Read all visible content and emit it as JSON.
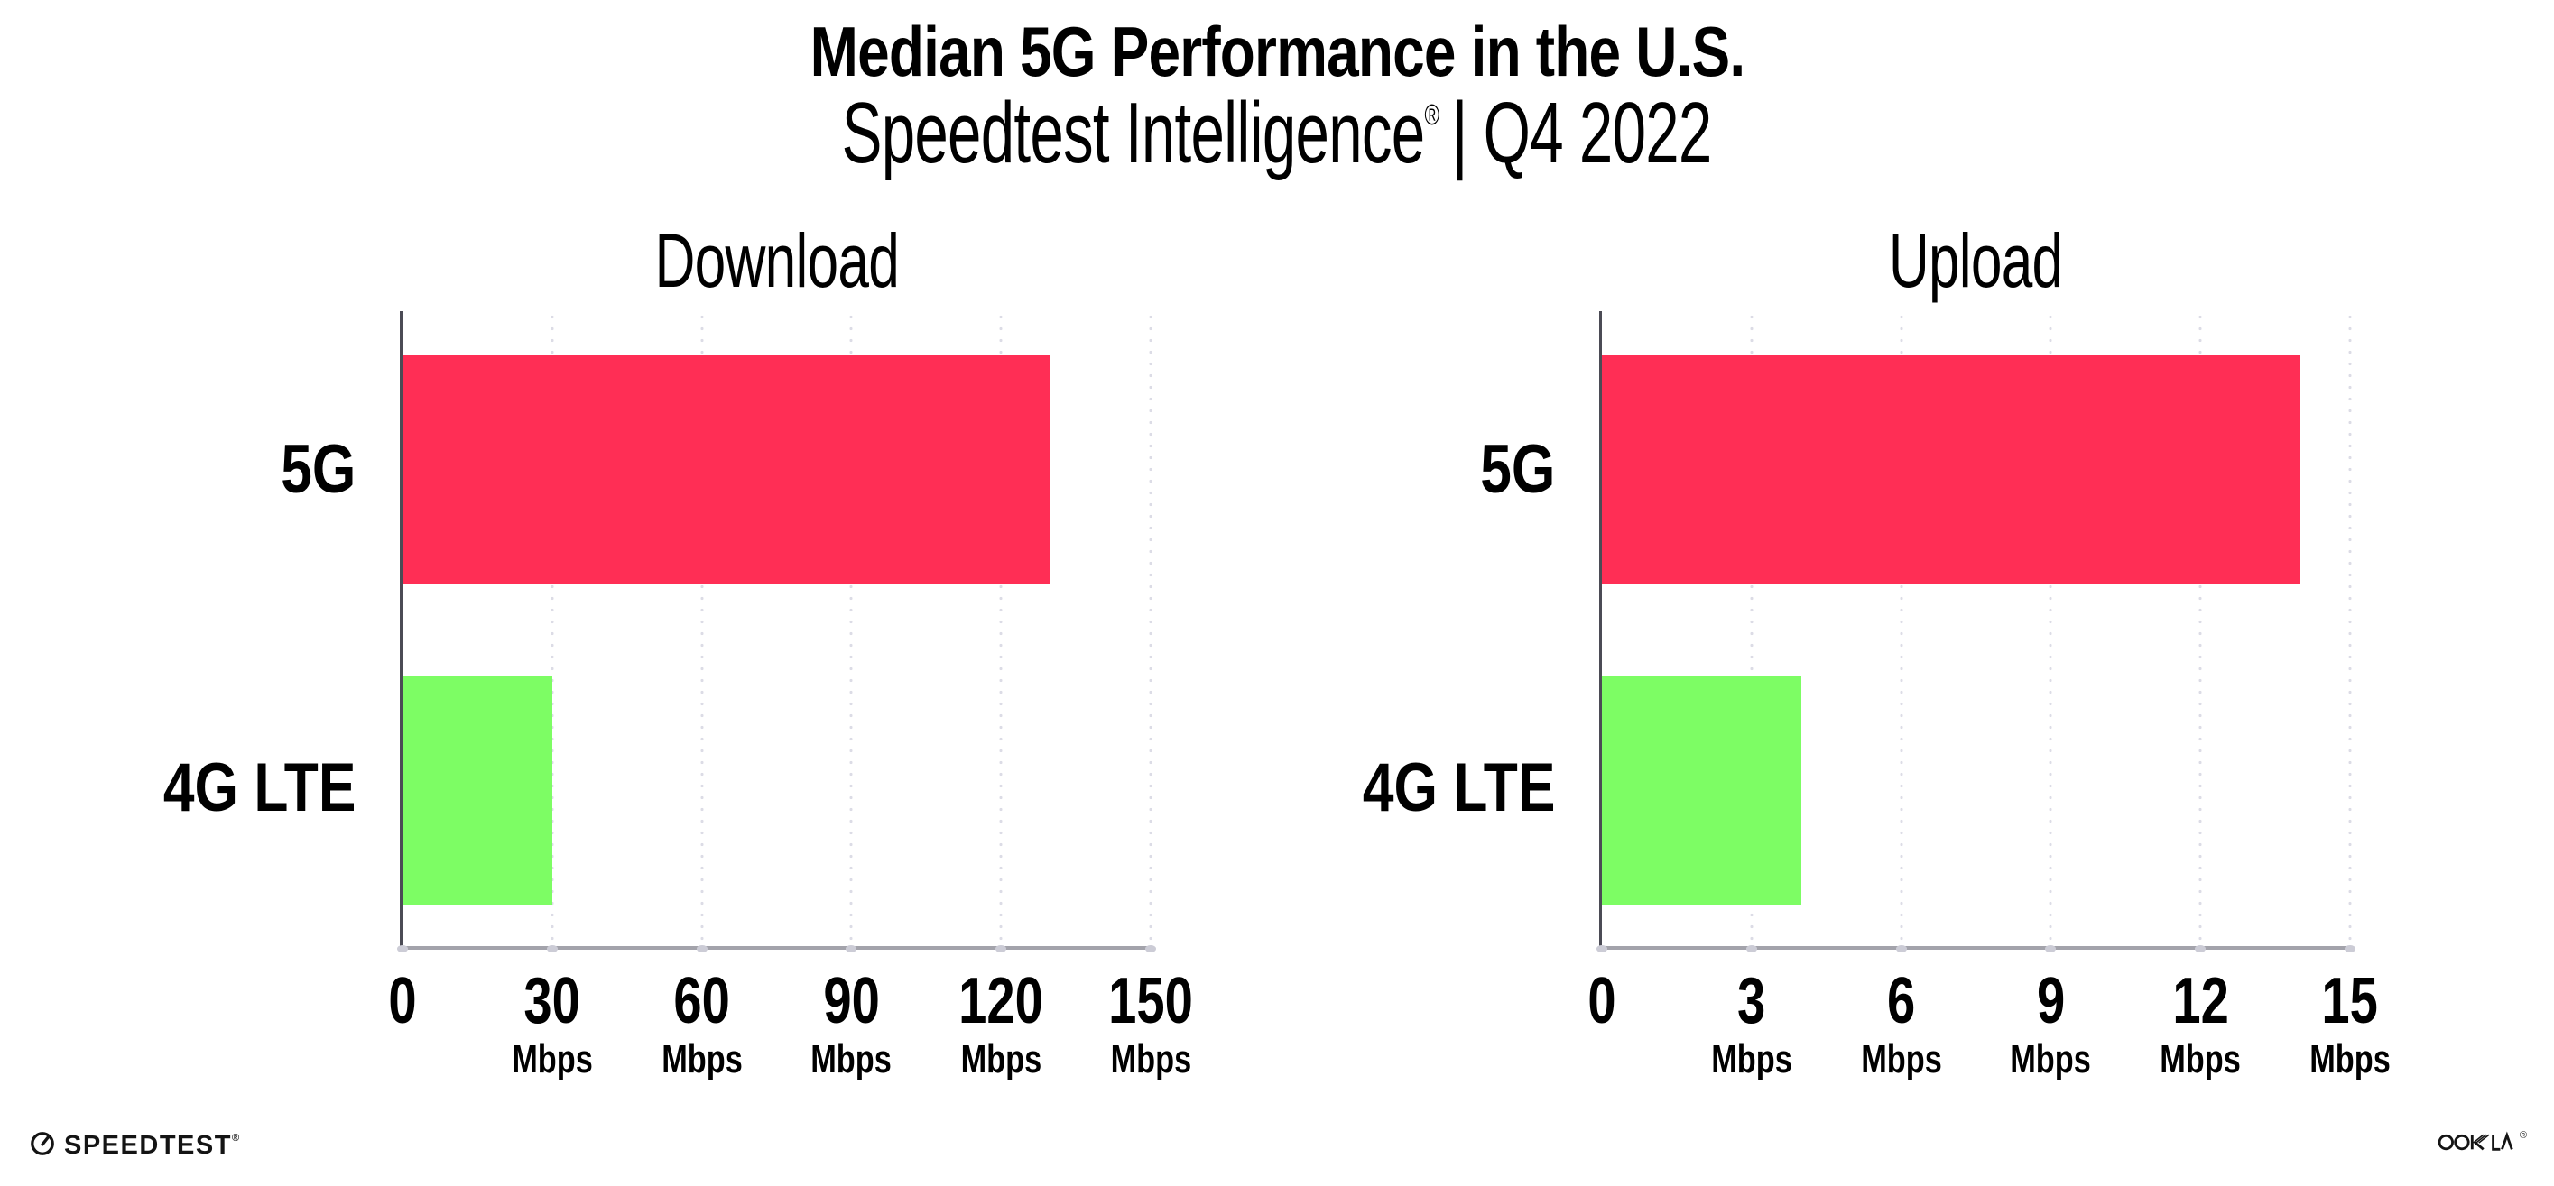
{
  "header": {
    "title": "Median 5G Performance in the U.S.",
    "subtitle_brand": "Speedtest Intelligence",
    "subtitle_reg": "®",
    "subtitle_rest": "| Q4 2022"
  },
  "footer": {
    "speedtest_text": "SPEEDTEST",
    "speedtest_reg": "®",
    "ookla_text": "OOKLA",
    "ookla_reg": "®"
  },
  "colors": {
    "bar_5g": "#FF2E55",
    "bar_4g_lte": "#7DFD64",
    "axis_left": "#4B4B55",
    "axis_bottom": "#A3A3AB",
    "gridline": "#DCDCE6",
    "text": "#000000"
  },
  "chart_data": [
    {
      "type": "bar",
      "orientation": "horizontal",
      "title": "Download",
      "categories": [
        "5G",
        "4G LTE"
      ],
      "values": [
        130,
        30
      ],
      "unit": "Mbps",
      "xlim": [
        0,
        150
      ],
      "grid": "dotted-vertical",
      "ticks": [
        {
          "v": "0",
          "u": ""
        },
        {
          "v": "30",
          "u": "Mbps"
        },
        {
          "v": "60",
          "u": "Mbps"
        },
        {
          "v": "90",
          "u": "Mbps"
        },
        {
          "v": "120",
          "u": "Mbps"
        },
        {
          "v": "150",
          "u": "Mbps"
        }
      ]
    },
    {
      "type": "bar",
      "orientation": "horizontal",
      "title": "Upload",
      "categories": [
        "5G",
        "4G LTE"
      ],
      "values": [
        14,
        4
      ],
      "unit": "Mbps",
      "xlim": [
        0,
        15
      ],
      "grid": "dotted-vertical",
      "ticks": [
        {
          "v": "0",
          "u": ""
        },
        {
          "v": "3",
          "u": "Mbps"
        },
        {
          "v": "6",
          "u": "Mbps"
        },
        {
          "v": "9",
          "u": "Mbps"
        },
        {
          "v": "12",
          "u": "Mbps"
        },
        {
          "v": "15",
          "u": "Mbps"
        }
      ]
    }
  ]
}
